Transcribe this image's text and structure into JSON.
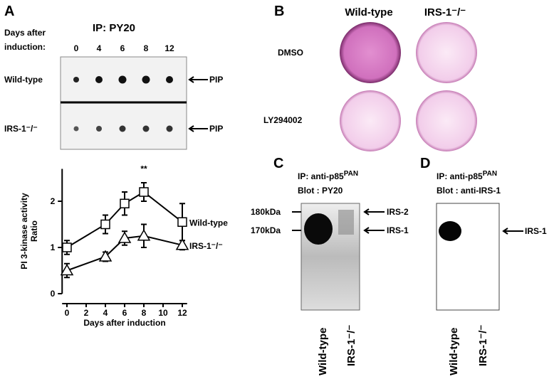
{
  "panels": {
    "a": {
      "letter": "A",
      "ip": "IP: PY20",
      "days": [
        "Days after",
        "induction:"
      ],
      "lanes": [
        "0",
        "4",
        "6",
        "8",
        "12"
      ],
      "rows": [
        "Wild-type",
        "IRS-1⁻/⁻"
      ],
      "marker": "PIP"
    },
    "b": {
      "letter": "B",
      "columns": [
        "Wild-type",
        "IRS-1⁻/⁻"
      ],
      "rows": [
        "DMSO",
        "LY294002"
      ]
    },
    "c": {
      "letter": "C",
      "ip": "IP: anti-p85",
      "ip_sup": "PAN",
      "blot": "Blot : PY20",
      "sizes": [
        "180kDa",
        "170kDa"
      ],
      "bands": [
        "IRS-2",
        "IRS-1"
      ],
      "lanes": [
        "Wild-type",
        "IRS-1⁻/⁻"
      ]
    },
    "d": {
      "letter": "D",
      "ip": "IP: anti-p85",
      "ip_sup": "PAN",
      "blot": "Blot : anti-IRS-1",
      "band": "IRS-1",
      "lanes": [
        "Wild-type",
        "IRS-1⁻/⁻"
      ]
    }
  },
  "chart_data": {
    "type": "line",
    "xlabel": "Days after induction",
    "ylabel": [
      "PI 3-kinase activity",
      "Ratio"
    ],
    "x": [
      0,
      4,
      6,
      8,
      12
    ],
    "xlim": [
      -0.5,
      12.5
    ],
    "xticks": [
      0,
      2,
      4,
      6,
      8,
      10,
      12
    ],
    "ylim": [
      0,
      2.7
    ],
    "yticks": [
      0,
      1,
      2
    ],
    "annotation": "**",
    "series": [
      {
        "name": "Wild-type",
        "marker": "square",
        "values": [
          1.0,
          1.5,
          1.95,
          2.2,
          1.55
        ],
        "errors": [
          0.15,
          0.2,
          0.25,
          0.2,
          0.4
        ]
      },
      {
        "name": "IRS-1⁻/⁻",
        "marker": "triangle",
        "values": [
          0.5,
          0.8,
          1.2,
          1.25,
          1.05
        ],
        "errors": [
          0.15,
          0.1,
          0.15,
          0.25,
          0.1
        ]
      }
    ]
  }
}
